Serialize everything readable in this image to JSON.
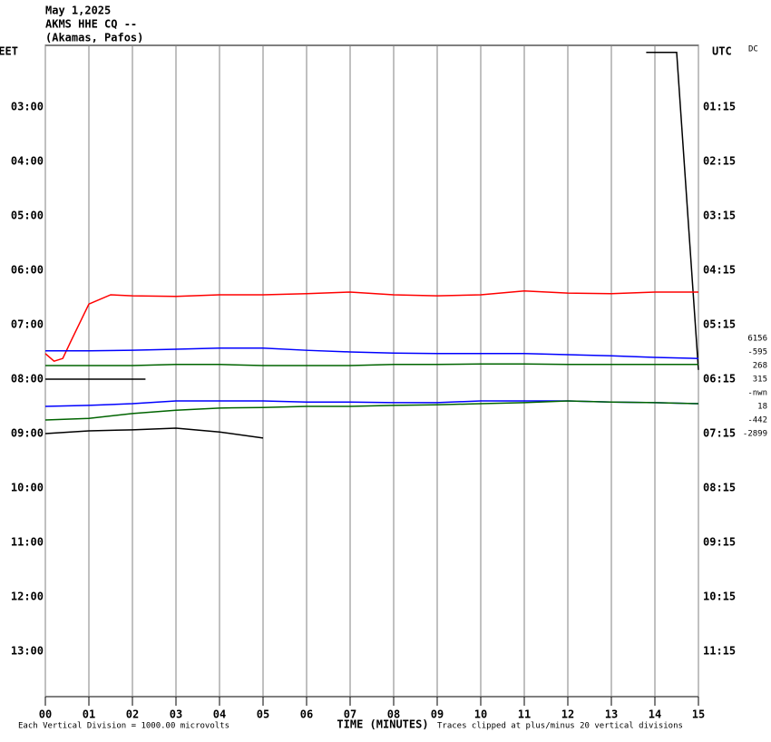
{
  "chart_data": {
    "type": "helicorder",
    "title_lines": [
      "May 1,2025",
      "AKMS HHE CQ --",
      "(Akamas, Pafos)"
    ],
    "left_axis_label": "EET",
    "right_axis_label": "UTC",
    "corner_label": "DC",
    "xlabel": "TIME (MINUTES)",
    "footnote_left": "Each Vertical Division = 1000.00 microvolts",
    "footnote_right": "Traces clipped at plus/minus 20 vertical divisions",
    "xlim": [
      0,
      15
    ],
    "xticks": [
      {
        "value": 0,
        "label": "00"
      },
      {
        "value": 1,
        "label": "01"
      },
      {
        "value": 2,
        "label": "02"
      },
      {
        "value": 3,
        "label": "03"
      },
      {
        "value": 4,
        "label": "04"
      },
      {
        "value": 5,
        "label": "05"
      },
      {
        "value": 6,
        "label": "06"
      },
      {
        "value": 7,
        "label": "07"
      },
      {
        "value": 8,
        "label": "08"
      },
      {
        "value": 9,
        "label": "09"
      },
      {
        "value": 10,
        "label": "10"
      },
      {
        "value": 11,
        "label": "11"
      },
      {
        "value": 12,
        "label": "12"
      },
      {
        "value": 13,
        "label": "13"
      },
      {
        "value": 14,
        "label": "14"
      },
      {
        "value": 15,
        "label": "15"
      }
    ],
    "ylim": [
      1.87,
      13.83
    ],
    "yticks": [
      {
        "value": 3,
        "label": "03:00"
      },
      {
        "value": 4,
        "label": "04:00"
      },
      {
        "value": 5,
        "label": "05:00"
      },
      {
        "value": 6,
        "label": "06:00"
      },
      {
        "value": 7,
        "label": "07:00"
      },
      {
        "value": 8,
        "label": "08:00"
      },
      {
        "value": 9,
        "label": "09:00"
      },
      {
        "value": 10,
        "label": "10:00"
      },
      {
        "value": 11,
        "label": "11:00"
      },
      {
        "value": 12,
        "label": "12:00"
      },
      {
        "value": 13,
        "label": "13:00"
      }
    ],
    "y2lim": [
      0.12,
      12.08
    ],
    "y2ticks": [
      {
        "value": 1.25,
        "label": "01:15"
      },
      {
        "value": 2.25,
        "label": "02:15"
      },
      {
        "value": 3.25,
        "label": "03:15"
      },
      {
        "value": 4.25,
        "label": "04:15"
      },
      {
        "value": 5.25,
        "label": "05:15"
      },
      {
        "value": 6.25,
        "label": "06:15"
      },
      {
        "value": 7.25,
        "label": "07:15"
      },
      {
        "value": 8.25,
        "label": "08:15"
      },
      {
        "value": 9.25,
        "label": "09:15"
      },
      {
        "value": 10.25,
        "label": "10:15"
      },
      {
        "value": 11.25,
        "label": "11:15"
      }
    ],
    "row_labels": [
      {
        "value": 7.25,
        "label": "6156"
      },
      {
        "value": 7.5,
        "label": "-595"
      },
      {
        "value": 7.75,
        "label": "268"
      },
      {
        "value": 8,
        "label": "315"
      },
      {
        "value": 8.25,
        "label": "-nwn"
      },
      {
        "value": 8.5,
        "label": "18"
      },
      {
        "value": 8.75,
        "label": "-442"
      },
      {
        "value": 9,
        "label": "-2899"
      }
    ],
    "grid": true,
    "series": [
      {
        "color": "#000000",
        "x": [
          13.8,
          14.5,
          15
        ],
        "values": [
          2.0,
          2.0,
          7.83
        ]
      },
      {
        "color": "#ff0000",
        "x": [
          0,
          0.2,
          0.4,
          0.6,
          1,
          1.5,
          2,
          3,
          4,
          5,
          6,
          7,
          8,
          9,
          10,
          11,
          12,
          13,
          14,
          15
        ],
        "values": [
          7.53,
          7.67,
          7.62,
          7.28,
          6.62,
          6.45,
          6.47,
          6.48,
          6.45,
          6.45,
          6.43,
          6.4,
          6.45,
          6.47,
          6.45,
          6.38,
          6.42,
          6.43,
          6.4,
          6.4
        ]
      },
      {
        "color": "#0000ff",
        "x": [
          0,
          1,
          2,
          3,
          4,
          5,
          6,
          7,
          8,
          9,
          10,
          11,
          12,
          13,
          14,
          15
        ],
        "values": [
          7.48,
          7.48,
          7.47,
          7.45,
          7.43,
          7.43,
          7.47,
          7.5,
          7.52,
          7.53,
          7.53,
          7.53,
          7.55,
          7.57,
          7.6,
          7.62
        ]
      },
      {
        "color": "#006400",
        "x": [
          0,
          1,
          2,
          3,
          4,
          5,
          6,
          7,
          8,
          9,
          10,
          11,
          12,
          13,
          14,
          15
        ],
        "values": [
          7.75,
          7.75,
          7.75,
          7.73,
          7.73,
          7.75,
          7.75,
          7.75,
          7.73,
          7.73,
          7.72,
          7.72,
          7.73,
          7.73,
          7.73,
          7.73
        ]
      },
      {
        "color": "#000000",
        "x": [
          0,
          0.5,
          1,
          1.5,
          2,
          2.3
        ],
        "values": [
          8.0,
          8.0,
          8.0,
          8.0,
          8.0,
          8.0
        ]
      },
      {
        "color": "#0000ff",
        "x": [
          0,
          1,
          2,
          3,
          4,
          5,
          6,
          7,
          8,
          9,
          10,
          11,
          12,
          13,
          14,
          15
        ],
        "values": [
          8.5,
          8.48,
          8.45,
          8.4,
          8.4,
          8.4,
          8.42,
          8.42,
          8.43,
          8.43,
          8.4,
          8.4,
          8.4,
          8.42,
          8.43,
          8.45
        ]
      },
      {
        "color": "#006400",
        "x": [
          0,
          1,
          2,
          3,
          4,
          5,
          6,
          7,
          8,
          9,
          10,
          11,
          12,
          13,
          14,
          15
        ],
        "values": [
          8.75,
          8.72,
          8.63,
          8.57,
          8.53,
          8.52,
          8.5,
          8.5,
          8.48,
          8.47,
          8.45,
          8.43,
          8.4,
          8.42,
          8.43,
          8.45
        ]
      },
      {
        "color": "#000000",
        "x": [
          0,
          1,
          2,
          3,
          4,
          5
        ],
        "values": [
          9.0,
          8.95,
          8.93,
          8.9,
          8.97,
          9.08
        ]
      }
    ]
  }
}
